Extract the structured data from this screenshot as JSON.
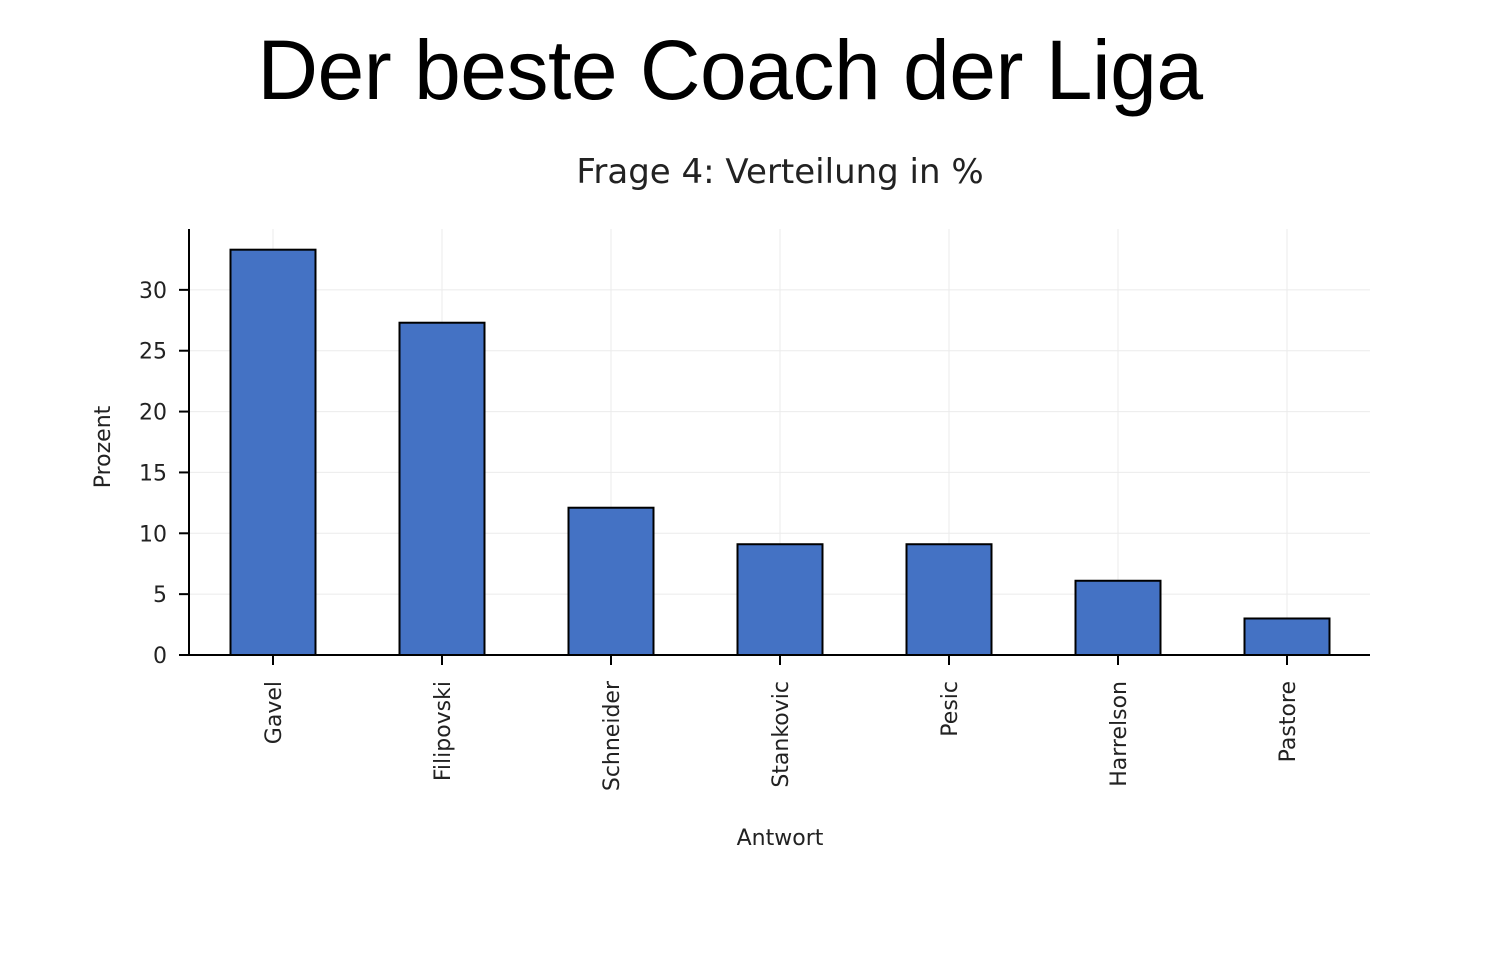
{
  "slide": {
    "title": "Der beste Coach der Liga"
  },
  "colors": {
    "bar_fill": "#4472c4",
    "bar_edge": "#000000",
    "grid": "#ebebeb",
    "axis": "#000000"
  },
  "chart_data": {
    "type": "bar",
    "title": "Frage 4: Verteilung in %",
    "xlabel": "Antwort",
    "ylabel": "Prozent",
    "categories": [
      "Gavel",
      "Filipovski",
      "Schneider",
      "Stankovic",
      "Pesic",
      "Harrelson",
      "Pastore"
    ],
    "values": [
      33.3,
      27.3,
      12.1,
      9.1,
      9.1,
      6.1,
      3.0
    ],
    "ylim": [
      0,
      35
    ],
    "yticks": [
      0,
      5,
      10,
      15,
      20,
      25,
      30
    ],
    "grid": true,
    "legend": false
  }
}
